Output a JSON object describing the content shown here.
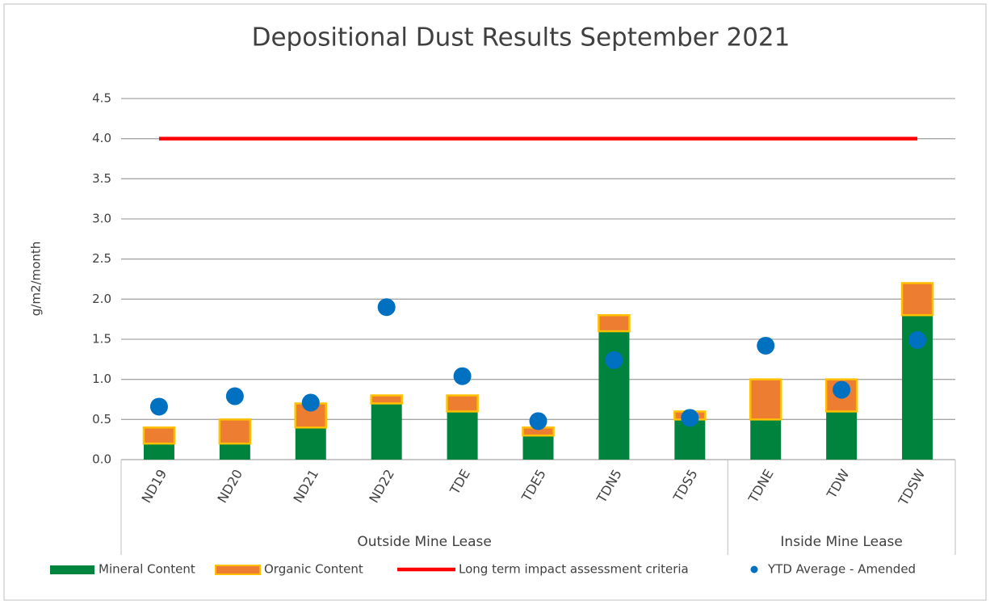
{
  "chart_data": {
    "type": "bar",
    "stacked": true,
    "title": "Depositional Dust Results September 2021",
    "y_label": "g/m2/month",
    "categories": [
      "ND19",
      "ND20",
      "ND21",
      "ND22",
      "TDE",
      "TDE5",
      "TDN5",
      "TDS5",
      "TDNE",
      "TDW",
      "TDSW"
    ],
    "groups": [
      {
        "label": "Outside Mine Lease",
        "categories": [
          "ND19",
          "ND20",
          "ND21",
          "ND22",
          "TDE",
          "TDE5",
          "TDN5",
          "TDS5"
        ]
      },
      {
        "label": "Inside Mine Lease",
        "categories": [
          "TDNE",
          "TDW",
          "TDSW"
        ]
      }
    ],
    "series": [
      {
        "name": "Mineral Content",
        "type": "bar",
        "color": "#00843d",
        "values": [
          0.2,
          0.2,
          0.4,
          0.7,
          0.6,
          0.3,
          1.6,
          0.5,
          0.5,
          0.6,
          1.8
        ]
      },
      {
        "name": "Organic Content",
        "type": "bar",
        "color": "#ed7d31",
        "edge_color": "#ffc000",
        "values": [
          0.2,
          0.3,
          0.3,
          0.1,
          0.2,
          0.1,
          0.2,
          0.1,
          0.5,
          0.4,
          0.4
        ]
      },
      {
        "name": "Long term impact assessment criteria",
        "type": "line",
        "color": "#ff0000",
        "values": [
          4.0,
          4.0,
          4.0,
          4.0,
          4.0,
          4.0,
          4.0,
          4.0,
          4.0,
          4.0,
          4.0
        ]
      },
      {
        "name": "YTD Average - Amended",
        "type": "scatter",
        "color": "#0070c0",
        "values": [
          0.66,
          0.79,
          0.71,
          1.9,
          1.04,
          0.48,
          1.24,
          0.52,
          1.42,
          0.87,
          1.49
        ]
      }
    ],
    "ylim": [
      0,
      4.5
    ],
    "yticks": [
      {
        "value": 0,
        "label": "0.0"
      },
      {
        "value": 0.5,
        "label": "0.5"
      },
      {
        "value": 1,
        "label": "1.0"
      },
      {
        "value": 1.5,
        "label": "1.5"
      },
      {
        "value": 2,
        "label": "2.0"
      },
      {
        "value": 2.5,
        "label": "2.5"
      },
      {
        "value": 3,
        "label": "3.0"
      },
      {
        "value": 3.5,
        "label": "3.5"
      },
      {
        "value": 4,
        "label": "4.0"
      },
      {
        "value": 4.5,
        "label": "4.5"
      }
    ],
    "grid": true,
    "legend": "bottom"
  }
}
